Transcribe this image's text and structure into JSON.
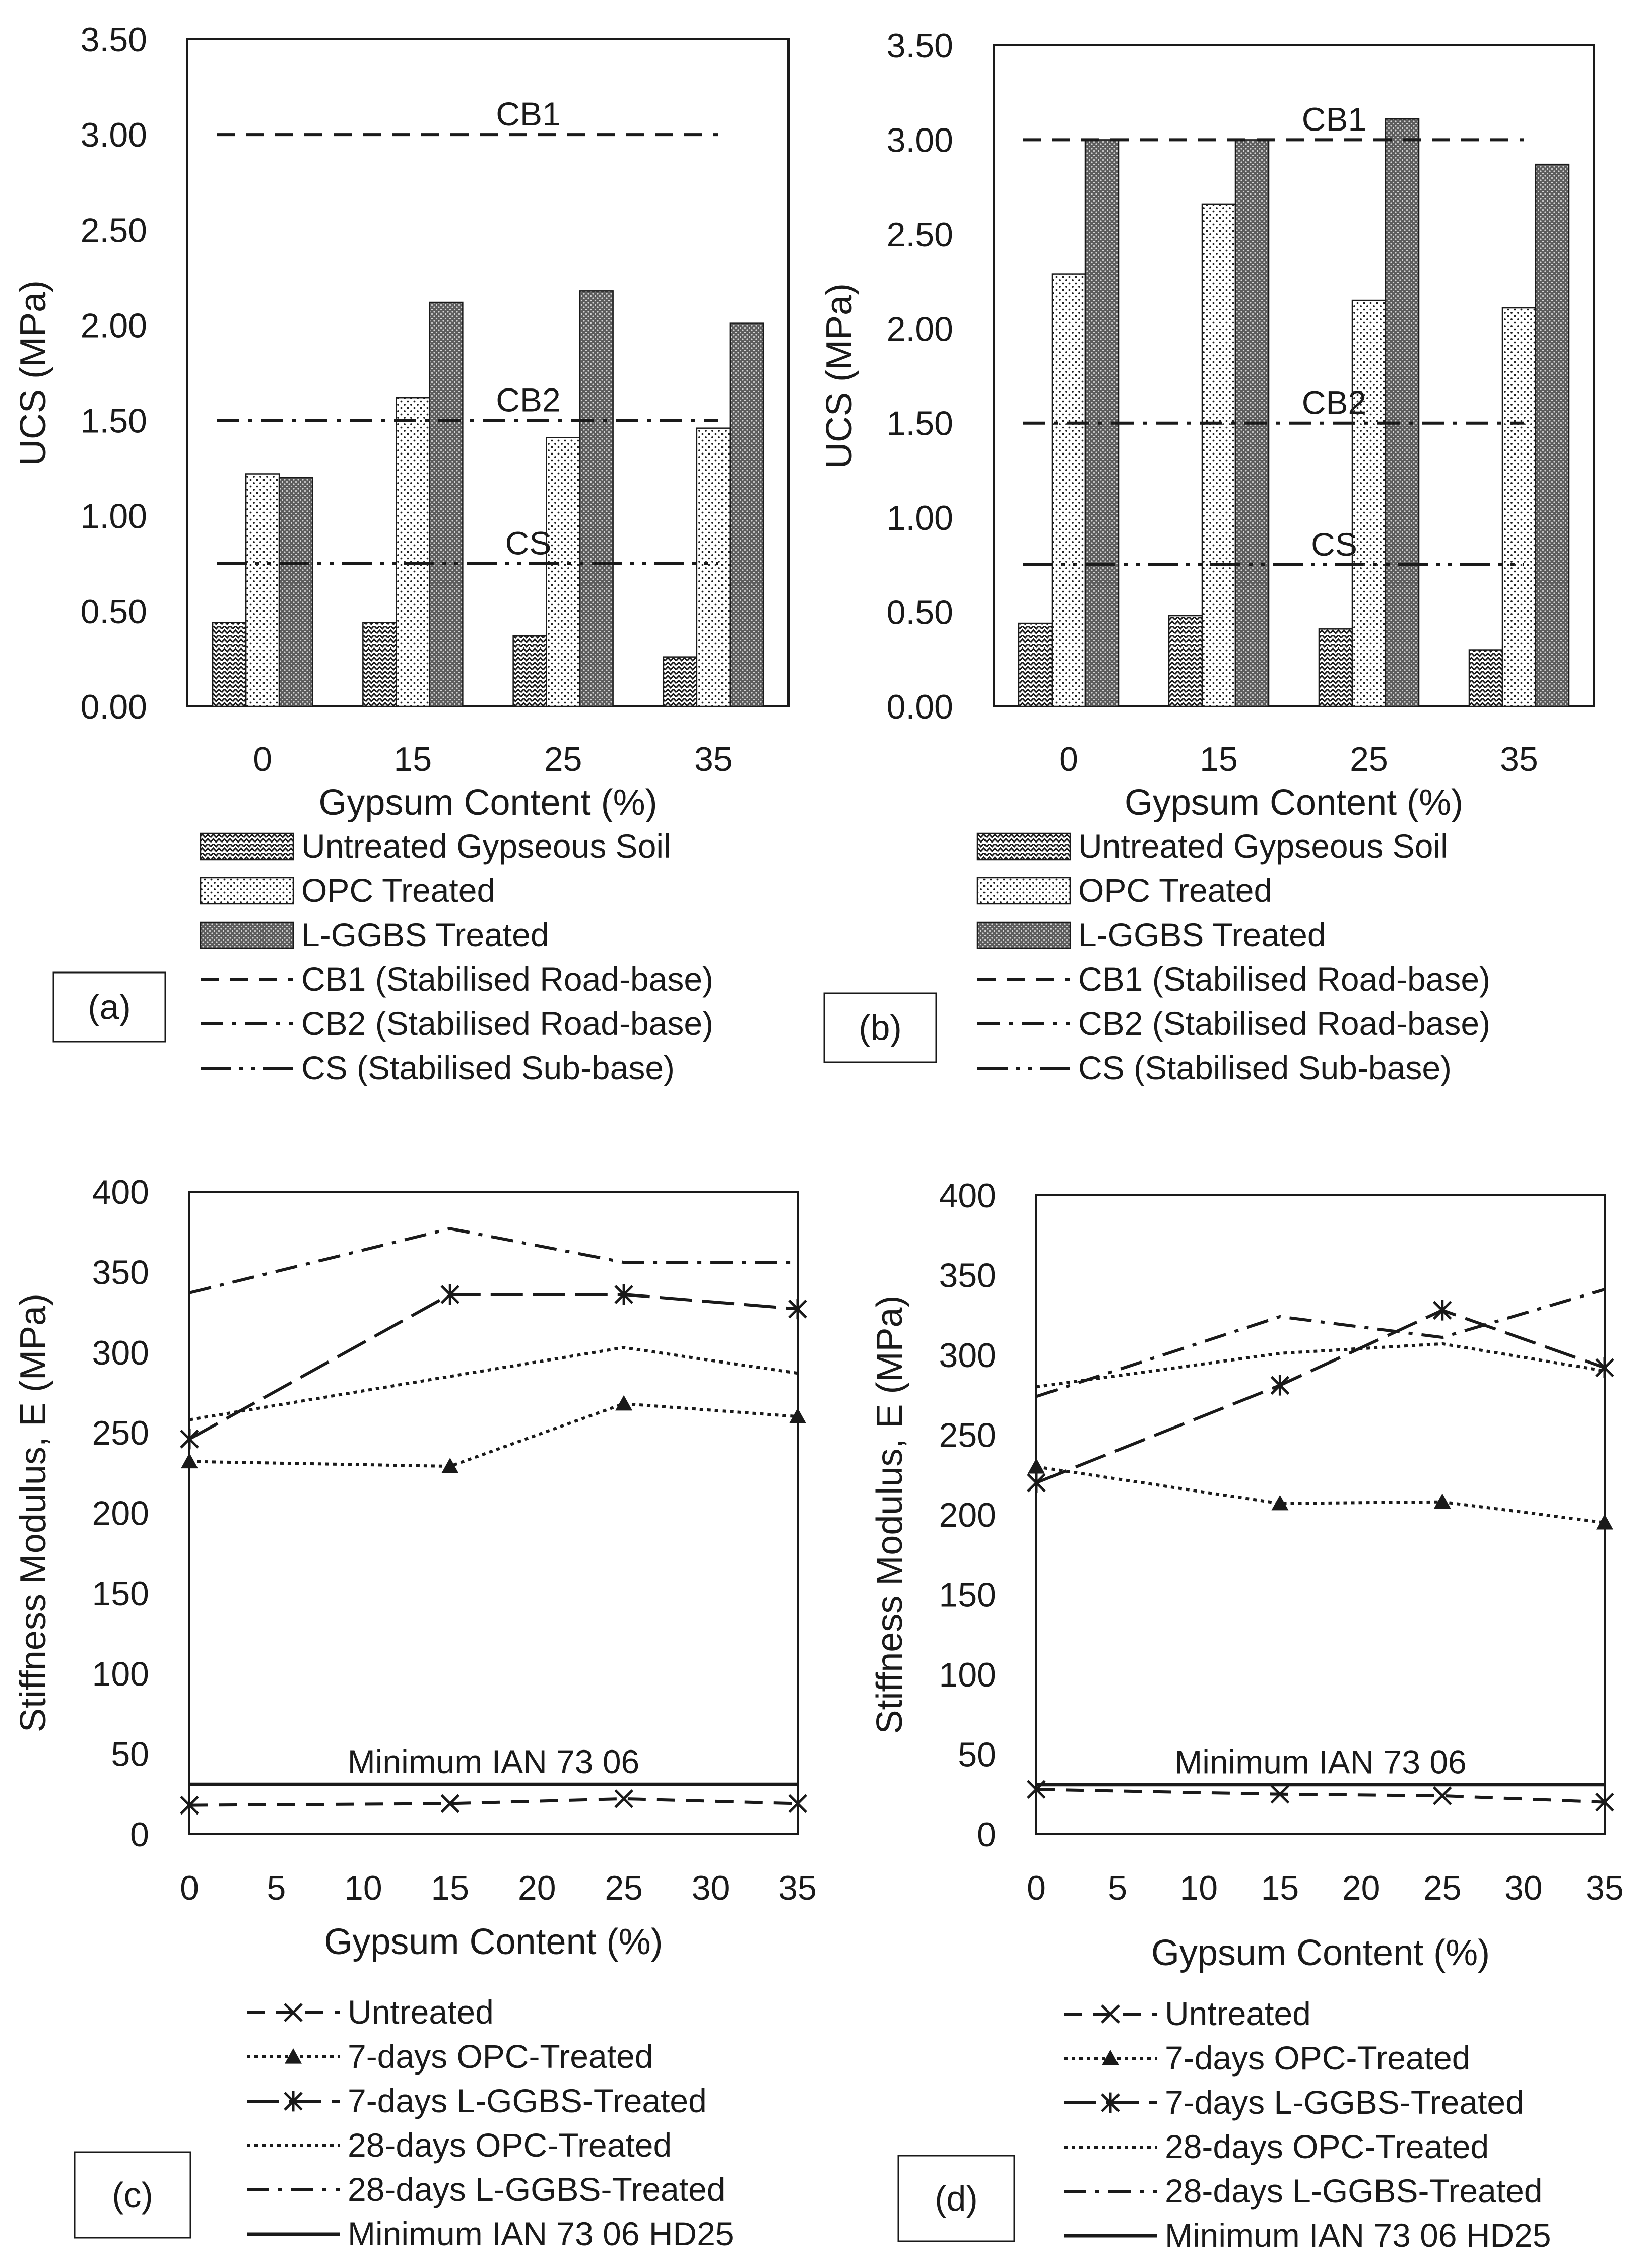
{
  "colors": {
    "ink": "#1a1a1a",
    "background": "#ffffff",
    "gridline": "#1a1a1a"
  },
  "chart_data": [
    {
      "id": "a",
      "type": "bar",
      "panel_label": "(a)",
      "xlabel": "Gypsum Content (%)",
      "ylabel": "UCS (MPa)",
      "ylim": [
        0,
        3.5
      ],
      "yticks": [
        "0.00",
        "0.50",
        "1.00",
        "1.50",
        "2.00",
        "2.50",
        "3.00",
        "3.50"
      ],
      "categories": [
        "0",
        "15",
        "25",
        "35"
      ],
      "series": [
        {
          "name": "Untreated Gypseous Soil",
          "pattern": "wave",
          "values": [
            0.44,
            0.44,
            0.37,
            0.26
          ]
        },
        {
          "name": "OPC Treated",
          "pattern": "dots",
          "values": [
            1.22,
            1.62,
            1.41,
            1.46
          ]
        },
        {
          "name": "L-GGBS Treated",
          "pattern": "dense",
          "values": [
            1.2,
            2.12,
            2.18,
            2.01
          ]
        }
      ],
      "reference_lines": [
        {
          "name": "CB1 (Stabilised Road-base)",
          "label": "CB1",
          "value": 3.0,
          "dash": "dash"
        },
        {
          "name": "CB2 (Stabilised Road-base)",
          "label": "CB2",
          "value": 1.5,
          "dash": "dashdot"
        },
        {
          "name": "CS (Stabilised Sub-base)",
          "label": "CS",
          "value": 0.75,
          "dash": "dashdotdot"
        }
      ]
    },
    {
      "id": "b",
      "type": "bar",
      "panel_label": "(b)",
      "xlabel": "Gypsum Content (%)",
      "ylabel": "UCS (MPa)",
      "ylim": [
        0,
        3.5
      ],
      "yticks": [
        "0.00",
        "0.50",
        "1.00",
        "1.50",
        "2.00",
        "2.50",
        "3.00",
        "3.50"
      ],
      "categories": [
        "0",
        "15",
        "25",
        "35"
      ],
      "series": [
        {
          "name": "Untreated Gypseous Soil",
          "pattern": "wave",
          "values": [
            0.44,
            0.48,
            0.41,
            0.3
          ]
        },
        {
          "name": "OPC Treated",
          "pattern": "dots",
          "values": [
            2.29,
            2.66,
            2.15,
            2.11
          ]
        },
        {
          "name": "L-GGBS Treated",
          "pattern": "dense",
          "values": [
            3.0,
            3.0,
            3.11,
            2.87
          ]
        }
      ],
      "reference_lines": [
        {
          "name": "CB1 (Stabilised Road-base)",
          "label": "CB1",
          "value": 3.0,
          "dash": "dash"
        },
        {
          "name": "CB2 (Stabilised Road-base)",
          "label": "CB2",
          "value": 1.5,
          "dash": "dashdot"
        },
        {
          "name": "CS (Stabilised Sub-base)",
          "label": "CS",
          "value": 0.75,
          "dash": "dashdotdot"
        }
      ]
    },
    {
      "id": "c",
      "type": "line",
      "panel_label": "(c)",
      "xlabel": "Gypsum Content (%)",
      "ylabel": "Stiffness Modulus, E (MPa)",
      "xlim": [
        0,
        35
      ],
      "ylim": [
        0,
        400
      ],
      "xticks": [
        "0",
        "5",
        "10",
        "15",
        "20",
        "25",
        "30",
        "35"
      ],
      "yticks": [
        "0",
        "50",
        "100",
        "150",
        "200",
        "250",
        "300",
        "350",
        "400"
      ],
      "x": [
        0,
        15,
        25,
        35
      ],
      "series": [
        {
          "name": "Untreated",
          "dash": "dash",
          "marker": "x",
          "values": [
            18,
            19,
            22,
            19
          ]
        },
        {
          "name": "7-days OPC-Treated",
          "dash": "dot",
          "marker": "triangle",
          "values": [
            232,
            229,
            268,
            260
          ]
        },
        {
          "name": "7-days L-GGBS-Treated",
          "dash": "longdash",
          "marker": "star",
          "values": [
            246,
            336,
            336,
            327
          ]
        },
        {
          "name": "28-days OPC-Treated",
          "dash": "dot",
          "marker": "none",
          "values": [
            258,
            285,
            303,
            287
          ]
        },
        {
          "name": "28-days L-GGBS-Treated",
          "dash": "dashdot",
          "marker": "none",
          "values": [
            337,
            377,
            356,
            356
          ]
        }
      ],
      "reference_line": {
        "name": "Minimum IAN 73 06 HD25",
        "label": "Minimum IAN 73 06",
        "value": 31
      }
    },
    {
      "id": "d",
      "type": "line",
      "panel_label": "(d)",
      "xlabel": "Gypsum Content (%)",
      "ylabel": "Stiffness Modulus, E (MPa)",
      "xlim": [
        0,
        35
      ],
      "ylim": [
        0,
        400
      ],
      "xticks": [
        "0",
        "5",
        "10",
        "15",
        "20",
        "25",
        "30",
        "35"
      ],
      "yticks": [
        "0",
        "50",
        "100",
        "150",
        "200",
        "250",
        "300",
        "350",
        "400"
      ],
      "x": [
        0,
        15,
        25,
        35
      ],
      "series": [
        {
          "name": "Untreated",
          "dash": "dash",
          "marker": "x",
          "values": [
            28,
            25,
            24,
            20
          ]
        },
        {
          "name": "7-days OPC-Treated",
          "dash": "dot",
          "marker": "triangle",
          "values": [
            230,
            207,
            208,
            195
          ]
        },
        {
          "name": "7-days L-GGBS-Treated",
          "dash": "longdash",
          "marker": "star",
          "values": [
            220,
            281,
            328,
            292
          ]
        },
        {
          "name": "28-days OPC-Treated",
          "dash": "dot",
          "marker": "none",
          "values": [
            280,
            301,
            307,
            290
          ]
        },
        {
          "name": "28-days L-GGBS-Treated",
          "dash": "dashdot",
          "marker": "none",
          "values": [
            274,
            324,
            311,
            341
          ]
        }
      ],
      "reference_line": {
        "name": "Minimum IAN 73 06 HD25",
        "label": "Minimum IAN 73 06",
        "value": 31
      }
    }
  ]
}
